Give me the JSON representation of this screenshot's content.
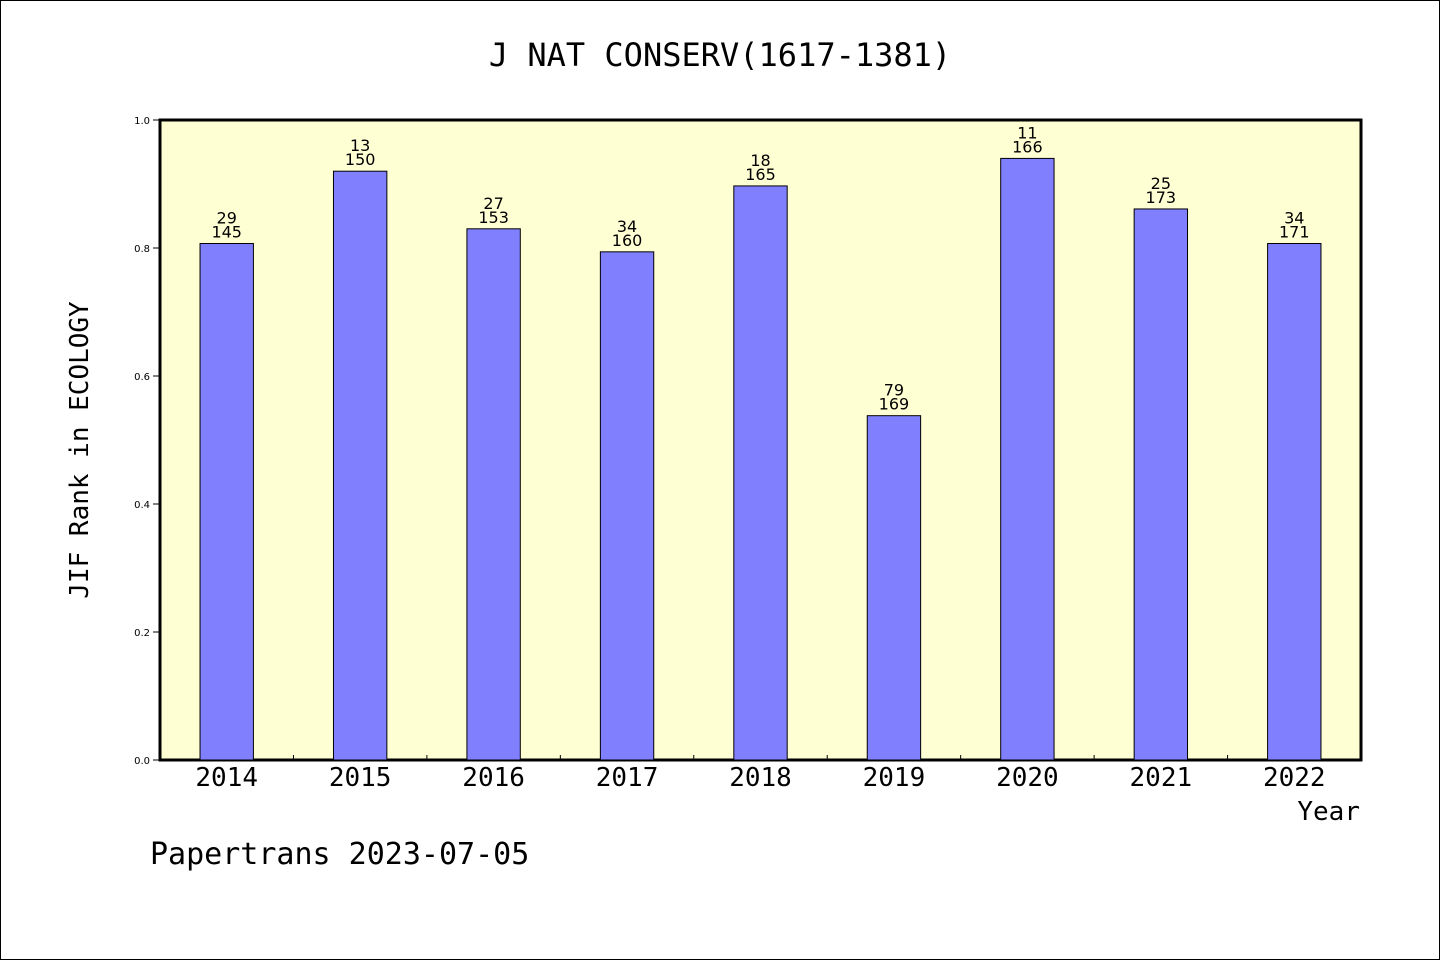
{
  "chart_data": {
    "type": "bar",
    "title": "J NAT CONSERV(1617-1381)",
    "xlabel": "Year",
    "ylabel": "JIF Rank in ECOLOGY",
    "ylim": [
      0,
      1.0
    ],
    "yticks": [
      "0.0",
      "0.2",
      "0.4",
      "0.6",
      "0.8",
      "1.0"
    ],
    "categories": [
      "2014",
      "2015",
      "2016",
      "2017",
      "2018",
      "2019",
      "2020",
      "2021",
      "2022"
    ],
    "values": [
      0.807,
      0.92,
      0.83,
      0.794,
      0.897,
      0.538,
      0.94,
      0.861,
      0.807
    ],
    "rank": [
      "29",
      "13",
      "27",
      "34",
      "18",
      "79",
      "11",
      "25",
      "34"
    ],
    "total": [
      "145",
      "150",
      "153",
      "160",
      "165",
      "169",
      "166",
      "173",
      "171"
    ],
    "colors": {
      "bar": "#8080ff",
      "plot_bg": "#ffffd4",
      "axis": "#000000"
    }
  },
  "footer": "Papertrans 2023-07-05"
}
